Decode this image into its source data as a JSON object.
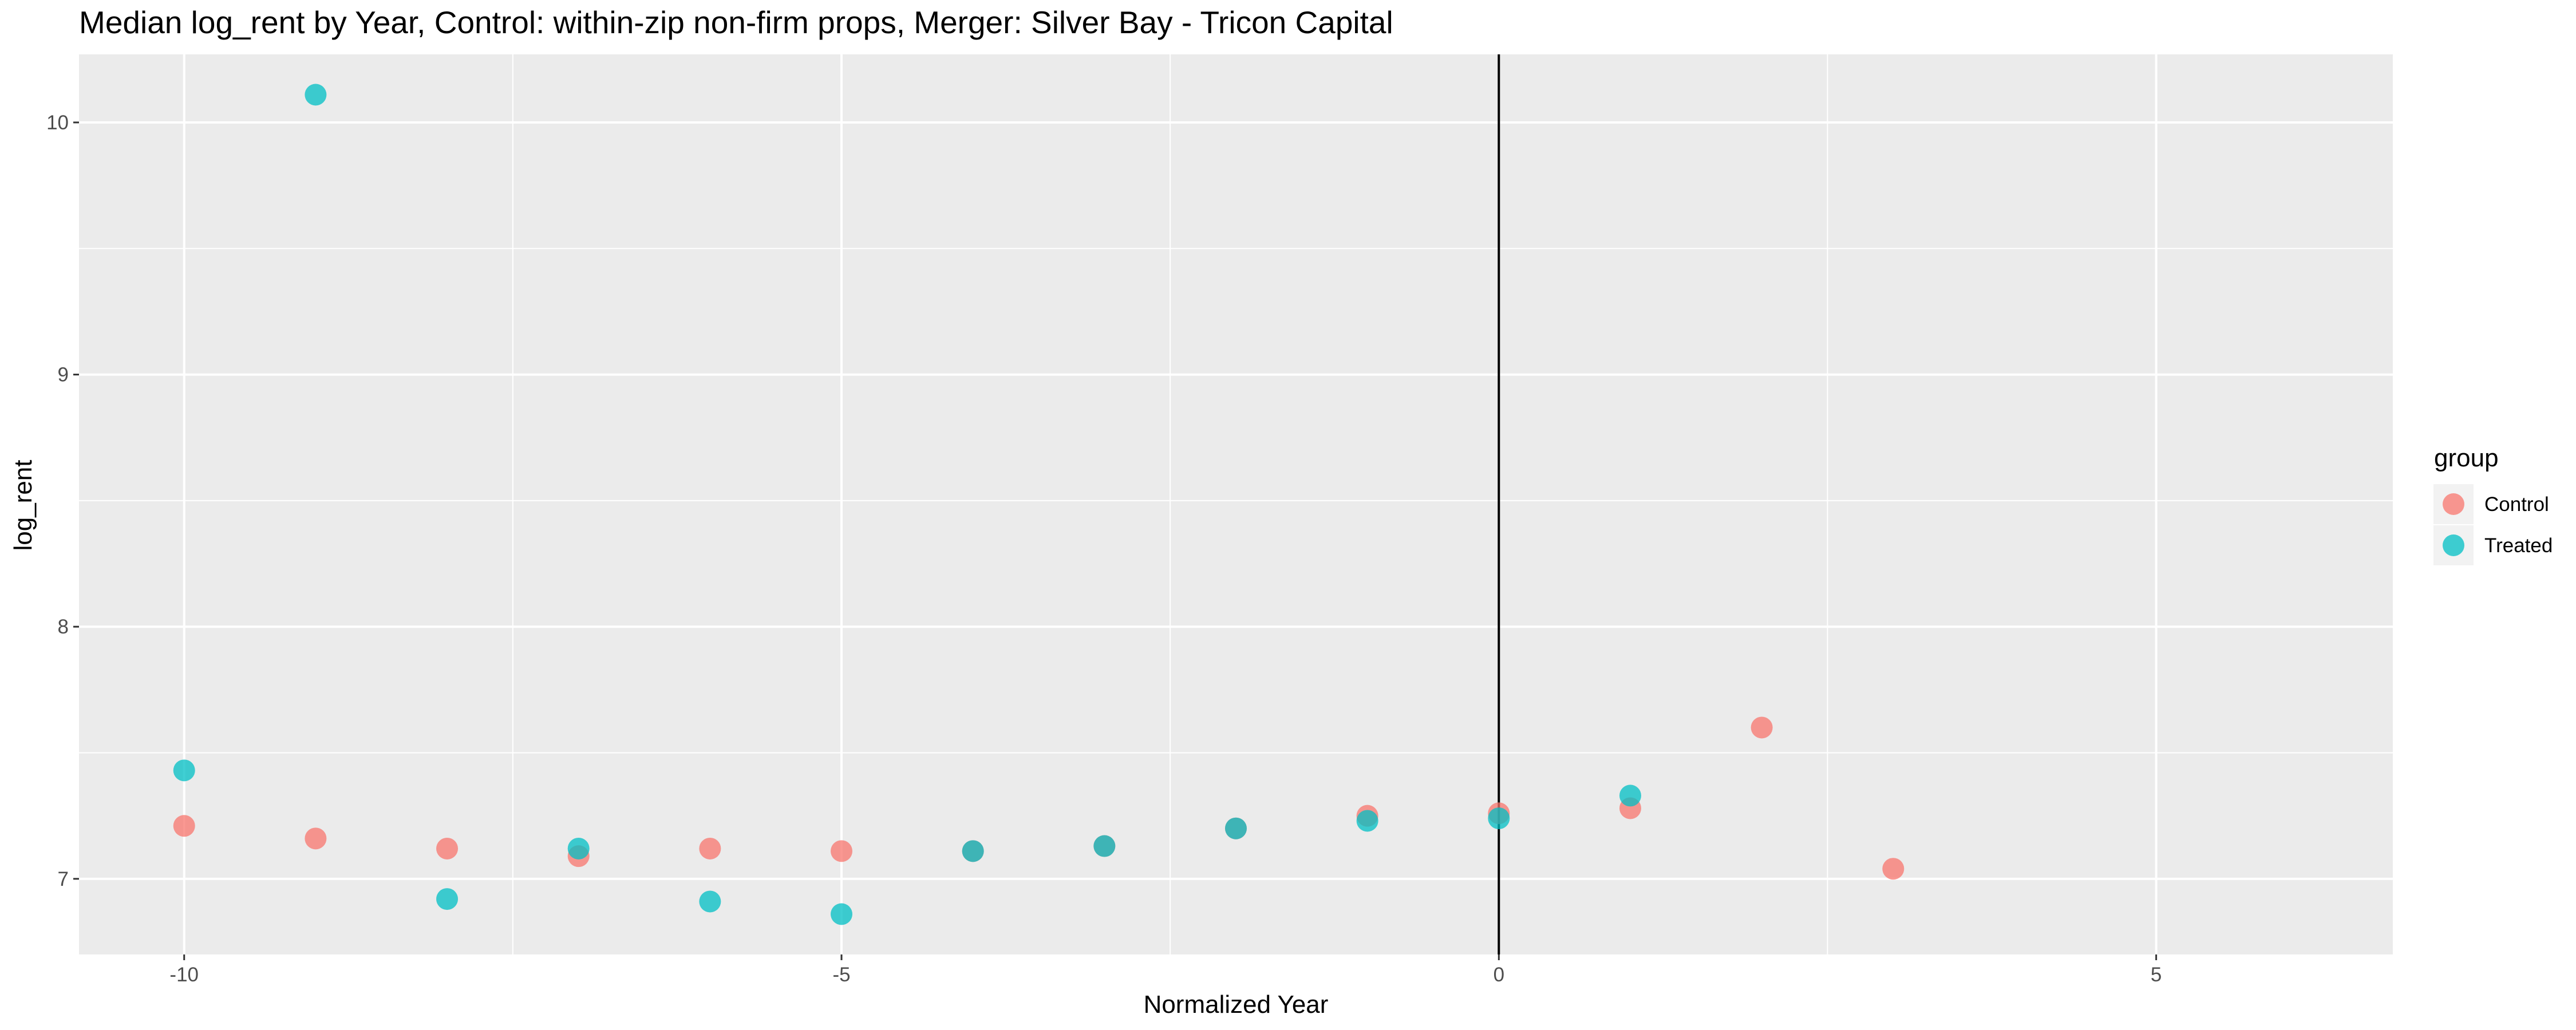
{
  "chart_data": {
    "type": "scatter",
    "title": "Median log_rent by Year, Control: within-zip non-firm props, Merger: Silver Bay - Tricon Capital",
    "xlabel": "Normalized Year",
    "ylabel": "log_rent",
    "xlim": [
      -10.8,
      6.8
    ],
    "ylim": [
      6.7,
      10.27
    ],
    "x_ticks": [
      -10,
      -5,
      0,
      5
    ],
    "x_tick_labels": [
      "-10",
      "-5",
      "0",
      "5"
    ],
    "y_ticks": [
      7,
      8,
      9,
      10
    ],
    "y_tick_labels": [
      "7",
      "8",
      "9",
      "10"
    ],
    "grid": true,
    "vline_x": 0,
    "legend": {
      "title": "group",
      "position": "right"
    },
    "series": [
      {
        "name": "Control",
        "color": "#F8766D",
        "x": [
          -10,
          -9,
          -8,
          -7,
          -6,
          -5,
          -4,
          -3,
          -2,
          -1,
          0,
          1,
          2,
          3
        ],
        "y": [
          7.21,
          7.16,
          7.12,
          7.09,
          7.12,
          7.11,
          7.11,
          7.13,
          7.2,
          7.25,
          7.26,
          7.28,
          7.6,
          7.04
        ]
      },
      {
        "name": "Treated",
        "color": "#00BFC4",
        "x": [
          -10,
          -9,
          -8,
          -7,
          -6,
          -5,
          -4,
          -3,
          -2,
          -1,
          0,
          1
        ],
        "y": [
          7.43,
          10.11,
          6.92,
          7.12,
          6.91,
          6.86,
          7.11,
          7.13,
          7.2,
          7.23,
          7.24,
          7.33
        ]
      }
    ]
  }
}
